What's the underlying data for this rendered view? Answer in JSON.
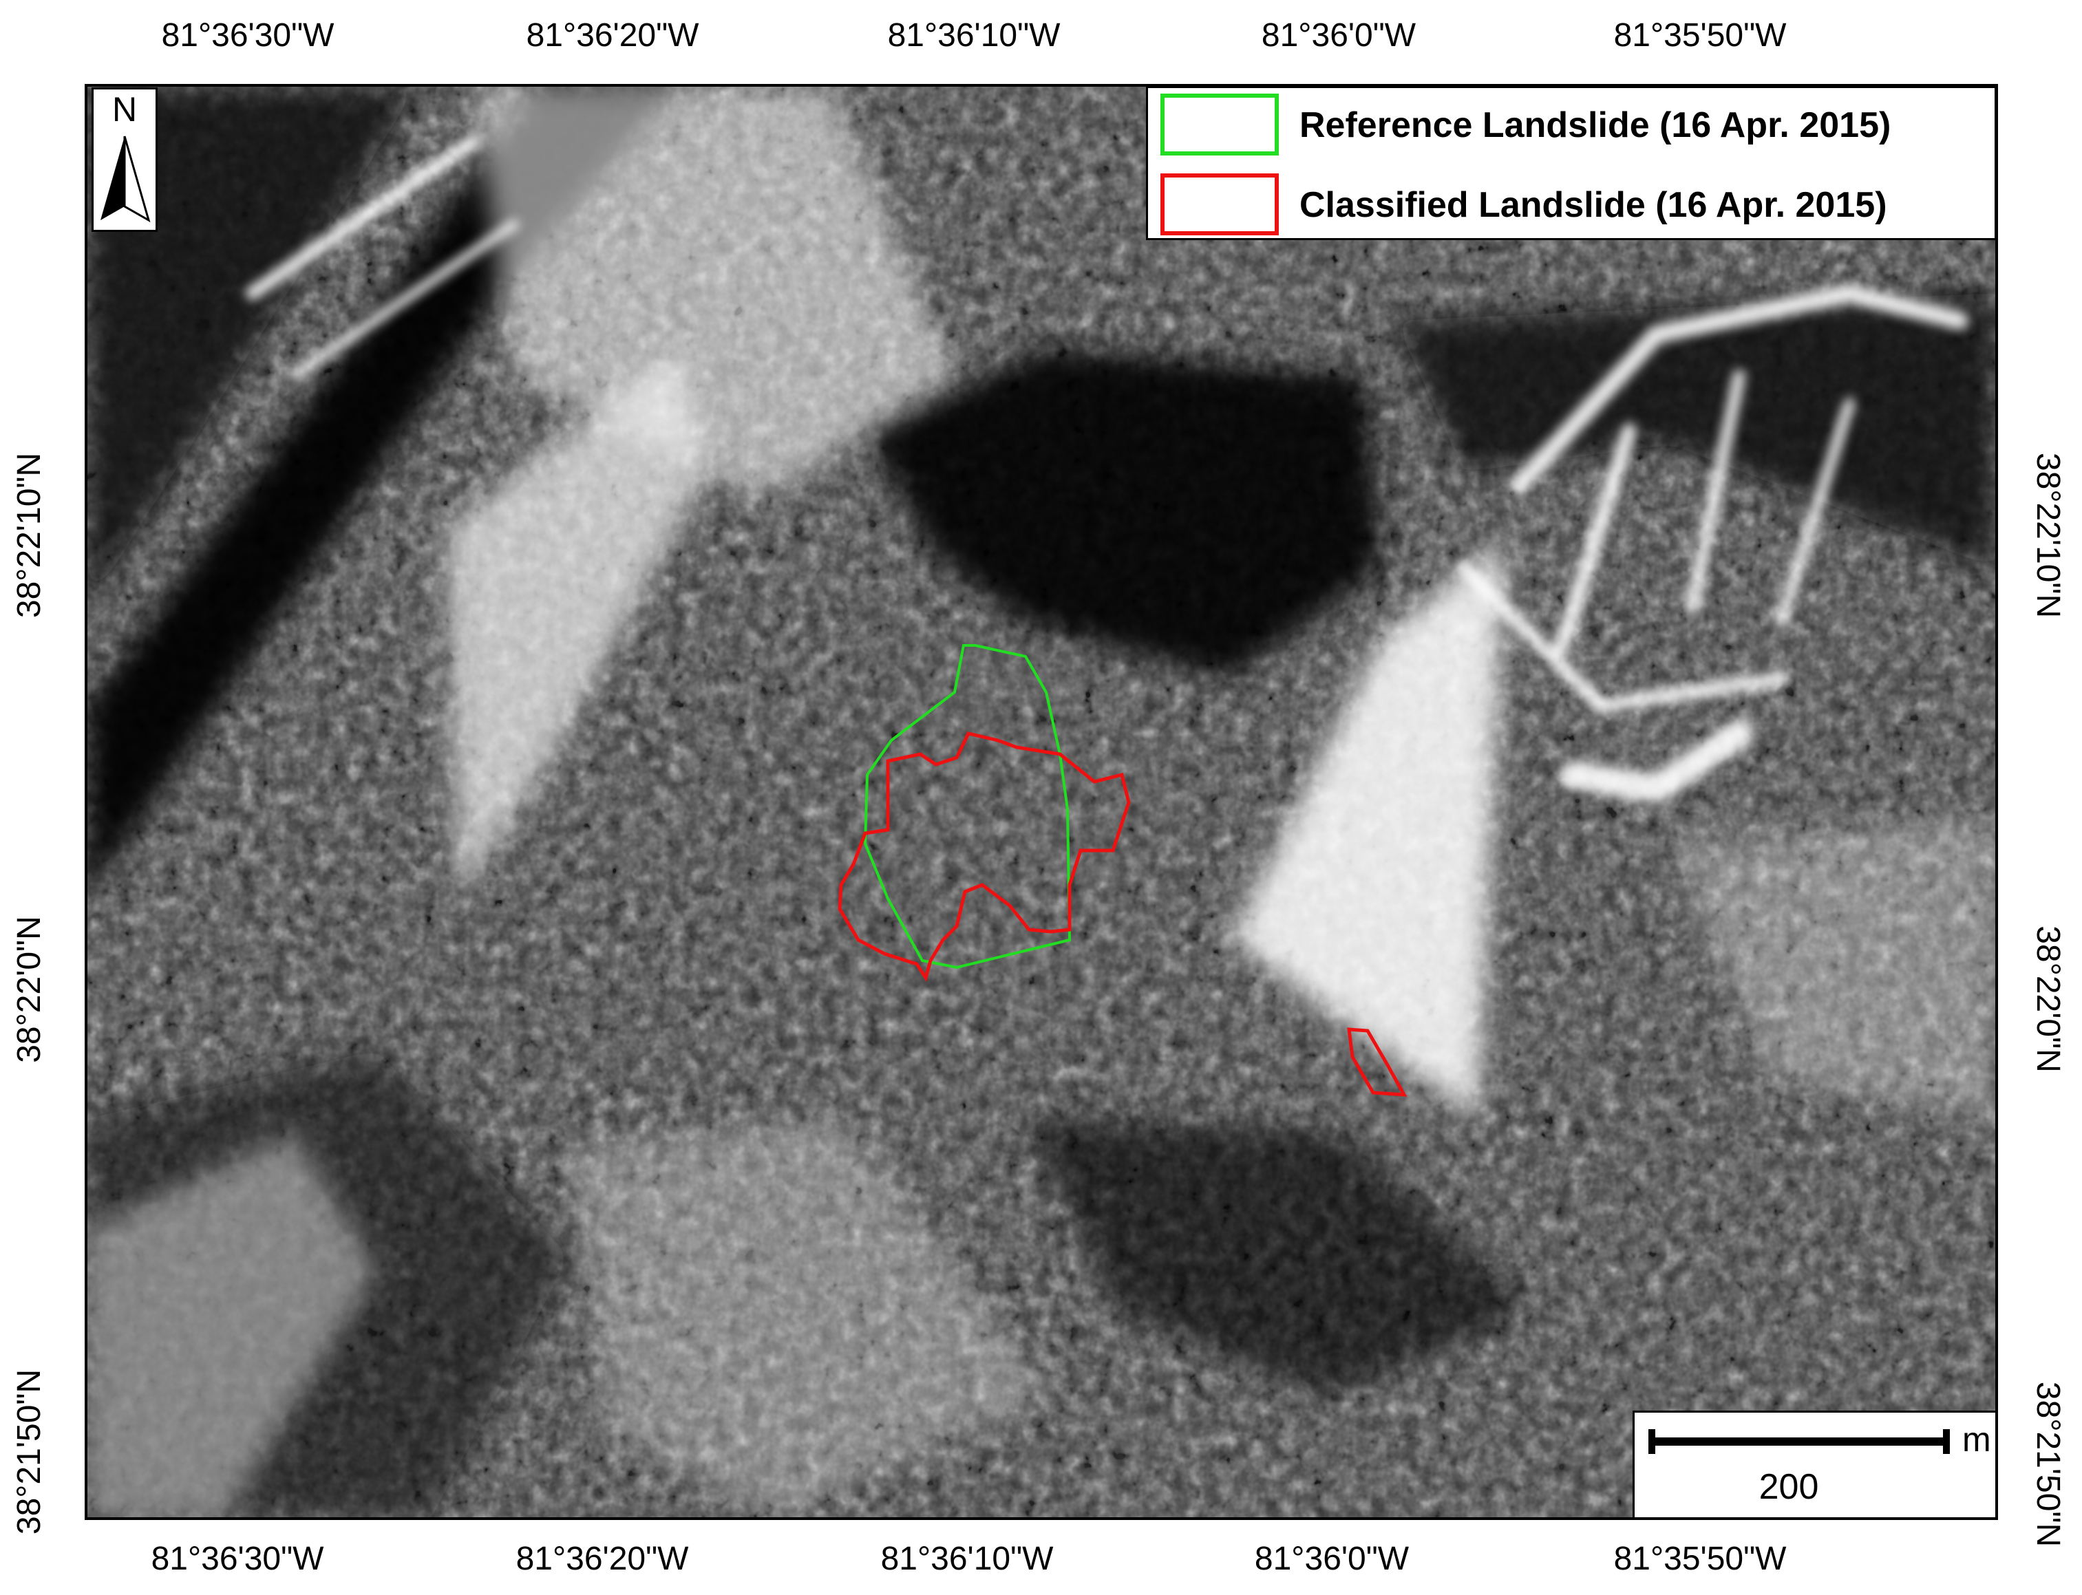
{
  "map": {
    "north_arrow_label": "N",
    "top_ticks": [
      "81°36'30\"W",
      "81°36'20\"W",
      "81°36'10\"W",
      "81°36'0\"W",
      "81°35'50\"W"
    ],
    "bottom_ticks": [
      "81°36'30\"W",
      "81°36'20\"W",
      "81°36'10\"W",
      "81°36'0\"W",
      "81°35'50\"W"
    ],
    "left_ticks": [
      "38°22'10\"N",
      "38°22'0\"N",
      "38°21'50\"N"
    ],
    "right_ticks": [
      "38°22'10\"N",
      "38°22'0\"N",
      "38°21'50\"N"
    ],
    "legend": [
      {
        "label": "Reference Landslide (16 Apr. 2015)",
        "color": "#22dd22"
      },
      {
        "label": "Classified Landslide (16 Apr. 2015)",
        "color": "#ee1111"
      }
    ],
    "scale_bar": {
      "value": "200",
      "unit": "m"
    }
  }
}
